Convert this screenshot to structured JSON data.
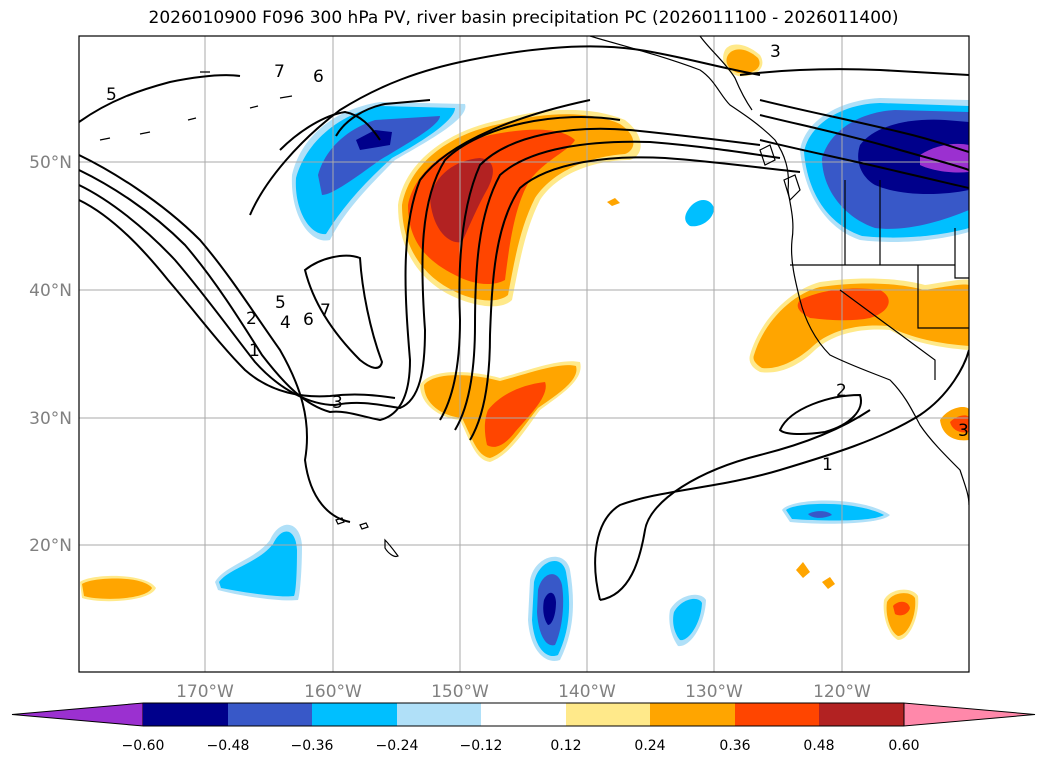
{
  "title": "2026010900 F096 300 hPa PV, river basin precipitation PC (2026011100 - 2026011400)",
  "lat_labels": [
    "50°N",
    "40°N",
    "30°N",
    "20°N"
  ],
  "lon_labels": [
    "170°W",
    "160°W",
    "150°W",
    "140°W",
    "130°W",
    "120°W"
  ],
  "contour_labels": [
    "5",
    "7",
    "6",
    "3",
    "2",
    "5",
    "4",
    "6",
    "7",
    "1",
    "3",
    "2",
    "1",
    "3"
  ],
  "colorbar": {
    "ticks": [
      "−0.60",
      "−0.48",
      "−0.36",
      "−0.24",
      "−0.12",
      "0.12",
      "0.24",
      "0.36",
      "0.48",
      "0.60"
    ],
    "colors": [
      "#9b30d0",
      "#00008b",
      "#3858c8",
      "#00bfff",
      "#b0e0f8",
      "#ffffff",
      "#ffe98a",
      "#ffa500",
      "#ff4500",
      "#b22222",
      "#ff88aa"
    ]
  },
  "fill_colors": {
    "purple": "#9b30d0",
    "navy": "#00008b",
    "blue": "#3858c8",
    "cyan": "#00bfff",
    "lightblue": "#b0e0f8",
    "yellow": "#ffe98a",
    "orange": "#ffa500",
    "redorange": "#ff4500",
    "darkred": "#b22222"
  }
}
